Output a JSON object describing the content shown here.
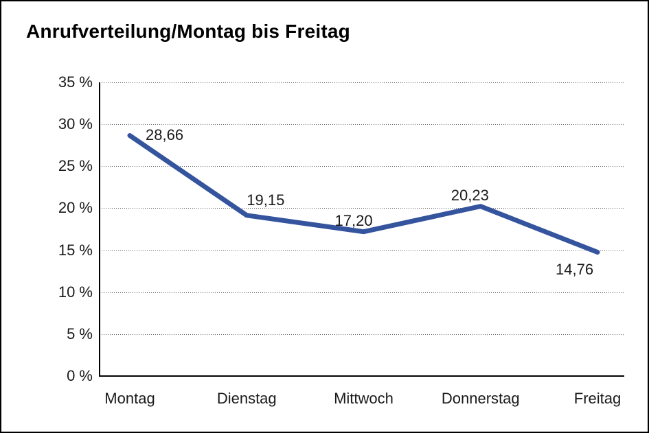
{
  "chart_data": {
    "type": "line",
    "title": "Anrufverteilung/Montag bis Freitag",
    "categories": [
      "Montag",
      "Dienstag",
      "Mittwoch",
      "Donnerstag",
      "Freitag"
    ],
    "series": [
      {
        "name": "Anrufverteilung",
        "values": [
          28.66,
          19.15,
          17.2,
          20.23,
          14.76
        ]
      }
    ],
    "point_labels": [
      "28,66",
      "19,15",
      "17,20",
      "20,23",
      "14,76"
    ],
    "y_ticks": [
      {
        "value": 0,
        "label": "0 %"
      },
      {
        "value": 5,
        "label": "5 %"
      },
      {
        "value": 10,
        "label": "10 %"
      },
      {
        "value": 15,
        "label": "15 %"
      },
      {
        "value": 20,
        "label": "20 %"
      },
      {
        "value": 25,
        "label": "25 %"
      },
      {
        "value": 30,
        "label": "30 %"
      },
      {
        "value": 35,
        "label": "35 %"
      }
    ],
    "ylim": [
      0,
      35
    ],
    "xlabel": "",
    "ylabel": "",
    "grid": "horizontal-dotted",
    "legend": "none",
    "colors": {
      "line": "#35549E",
      "axis": "#000000",
      "gridline": "#606060",
      "text": "#1a1a1a",
      "background": "#ffffff",
      "border": "#000000"
    }
  }
}
